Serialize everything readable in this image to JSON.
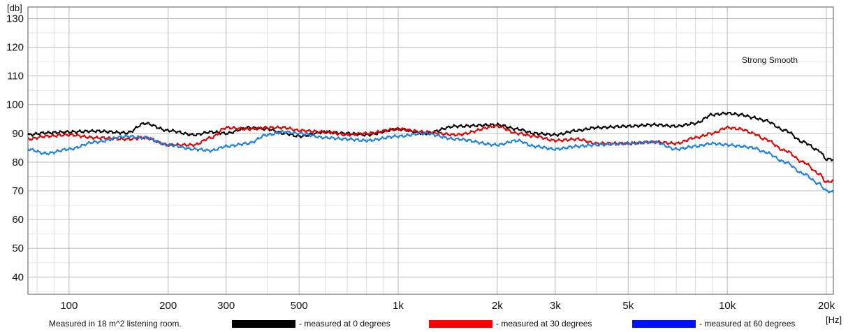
{
  "chart_data": {
    "type": "line",
    "title": "",
    "xlabel": "[Hz]",
    "ylabel": "[db]",
    "x_scale": "log",
    "xlim": [
      75,
      21000
    ],
    "ylim": [
      34,
      134
    ],
    "grid": true,
    "x_tick_values": [
      100,
      200,
      300,
      500,
      1000,
      2000,
      3000,
      5000,
      10000,
      20000
    ],
    "x_tick_labels": [
      "100",
      "200",
      "300",
      "500",
      "1k",
      "2k",
      "3k",
      "5k",
      "10k",
      "20k"
    ],
    "y_tick_values": [
      40,
      50,
      60,
      70,
      80,
      90,
      100,
      110,
      120,
      130
    ],
    "y_tick_labels": [
      "40",
      "50",
      "60",
      "70",
      "80",
      "90",
      "100",
      "110",
      "120",
      "130"
    ],
    "annotations": [
      "Strong Smooth",
      "Measured in 18 m^2  listening room."
    ],
    "legend_placement": "bottom",
    "series": [
      {
        "name": "- measured at 0 degrees",
        "color": "#000000",
        "legend_color": "#000000",
        "x": [
          75,
          85,
          100,
          120,
          150,
          170,
          200,
          240,
          270,
          300,
          350,
          400,
          450,
          500,
          600,
          700,
          800,
          1000,
          1200,
          1500,
          2000,
          2300,
          2600,
          3000,
          3500,
          4000,
          5000,
          6000,
          7000,
          8000,
          9000,
          10000,
          11000,
          12000,
          13000,
          15000,
          17000,
          19000,
          20000,
          21000
        ],
        "y": [
          89.5,
          90.2,
          90.5,
          90.8,
          90.2,
          93.5,
          91.0,
          89.5,
          90.5,
          90.0,
          92.0,
          91.5,
          90.0,
          89.0,
          90.5,
          90.0,
          89.5,
          91.5,
          90.0,
          92.5,
          93.0,
          91.5,
          90.0,
          89.5,
          91.0,
          92.0,
          92.5,
          93.0,
          92.5,
          93.5,
          96.5,
          97.0,
          96.5,
          95.5,
          94.5,
          91.0,
          87.0,
          84.0,
          81.0,
          81.0
        ]
      },
      {
        "name": "- measured at 30 degrees",
        "color": "#e00000",
        "legend_color": "#ff0000",
        "x": [
          75,
          85,
          100,
          120,
          150,
          170,
          200,
          240,
          270,
          300,
          350,
          400,
          450,
          500,
          600,
          700,
          800,
          1000,
          1200,
          1500,
          2000,
          2300,
          2600,
          3000,
          3500,
          4000,
          5000,
          6000,
          7000,
          8000,
          9000,
          10000,
          11000,
          12000,
          13000,
          15000,
          17000,
          19000,
          20000,
          21000
        ],
        "y": [
          88.0,
          89.0,
          89.5,
          88.5,
          88.0,
          88.5,
          86.0,
          86.0,
          88.5,
          92.0,
          91.5,
          92.0,
          92.0,
          91.0,
          90.5,
          89.5,
          90.0,
          91.5,
          90.5,
          89.5,
          92.5,
          90.0,
          89.0,
          87.5,
          88.0,
          86.5,
          86.5,
          87.0,
          86.5,
          88.5,
          90.0,
          92.0,
          91.5,
          90.0,
          88.0,
          84.0,
          80.0,
          76.0,
          73.0,
          73.5
        ]
      },
      {
        "name": "- measured at 60 degrees",
        "color": "#1a7fe0",
        "legend_color": "#0010ff",
        "x": [
          75,
          85,
          100,
          120,
          150,
          170,
          200,
          240,
          270,
          300,
          350,
          400,
          450,
          500,
          600,
          700,
          800,
          1000,
          1200,
          1500,
          2000,
          2300,
          2600,
          3000,
          3500,
          4000,
          5000,
          6000,
          7000,
          8000,
          9000,
          10000,
          11000,
          12000,
          13000,
          15000,
          17000,
          19000,
          20000,
          21000
        ],
        "y": [
          84.5,
          83.0,
          84.5,
          87.0,
          89.0,
          88.5,
          86.0,
          84.5,
          84.0,
          85.5,
          86.5,
          89.5,
          90.5,
          90.0,
          88.5,
          88.0,
          87.5,
          89.0,
          90.0,
          88.0,
          86.0,
          87.5,
          85.5,
          84.5,
          85.5,
          86.0,
          86.5,
          87.0,
          84.5,
          85.5,
          86.5,
          86.0,
          85.5,
          85.0,
          83.5,
          80.0,
          76.0,
          72.5,
          70.0,
          69.5
        ]
      }
    ]
  }
}
